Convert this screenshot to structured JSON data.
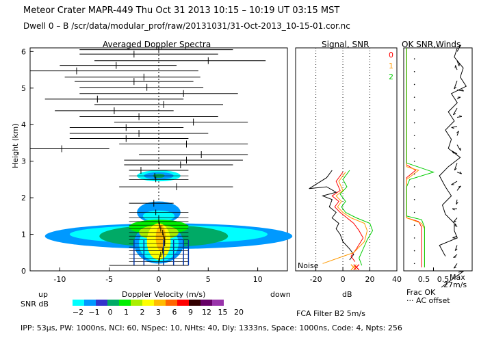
{
  "header": {
    "title_line": "Meteor Crater   MAPR-449   Thu Oct 31 2013 10:15 – 10:19 UT 03:15 MST",
    "dwell_line": "Dwell   0  –   B    /scr/data/modular_prof/raw/20131031/31-Oct-2013_10-15-01.cor.nc"
  },
  "colors": {
    "ok0": "#ff0000",
    "ok1": "#ff9900",
    "ok2": "#00cc00",
    "snr_scale": [
      "#00ffff",
      "#0099ff",
      "#3333cc",
      "#00aa66",
      "#00ee00",
      "#aaee00",
      "#ffff00",
      "#ffbb00",
      "#ff6600",
      "#ff0000",
      "#330000",
      "#660066",
      "#9933aa"
    ]
  },
  "chart_data": [
    {
      "type": "spectra",
      "title": "Averaged Doppler Spectra",
      "xlabel": "Doppler Velocity (m/s)",
      "ylabel": "Height (km)",
      "xlim": [
        -13,
        13
      ],
      "ylim": [
        0,
        6.1
      ],
      "xticks": [
        -10,
        -5,
        0,
        5,
        10
      ],
      "yticks": [
        0,
        1,
        2,
        3,
        4,
        5,
        6
      ],
      "direction_left": "up",
      "direction_right": "down",
      "snr_label": "SNR dB",
      "snr_ticks": [
        "−2",
        "−1",
        "0",
        "1",
        "2",
        "3",
        "6",
        "9",
        "12",
        "15",
        "20"
      ],
      "noisy_bars": [
        {
          "h": 6.05,
          "v": 0.0,
          "lo": -8.0,
          "hi": 7.5
        },
        {
          "h": 5.93,
          "v": -2.5,
          "lo": -8.0,
          "hi": 6.0
        },
        {
          "h": 5.75,
          "v": 5.0,
          "lo": -6.5,
          "hi": 10.8
        },
        {
          "h": 5.62,
          "v": -4.3,
          "lo": -10.0,
          "hi": 1.8
        },
        {
          "h": 5.47,
          "v": -8.3,
          "lo": -13.0,
          "hi": 4.0
        },
        {
          "h": 5.3,
          "v": -1.5,
          "lo": -9.5,
          "hi": 4.2
        },
        {
          "h": 5.18,
          "v": -2.5,
          "lo": -8.5,
          "hi": 3.5
        },
        {
          "h": 5.02,
          "v": -1.2,
          "lo": -8.0,
          "hi": 4.5
        },
        {
          "h": 4.85,
          "v": 2.5,
          "lo": -8.0,
          "hi": 8.0
        },
        {
          "h": 4.7,
          "v": -6.2,
          "lo": -11.5,
          "hi": 2.5
        },
        {
          "h": 4.55,
          "v": 0.5,
          "lo": -6.5,
          "hi": 6.5
        },
        {
          "h": 4.38,
          "v": -4.5,
          "lo": -10.5,
          "hi": 1.5
        },
        {
          "h": 4.22,
          "v": -2.0,
          "lo": -8.0,
          "hi": 6.0
        },
        {
          "h": 4.07,
          "v": 3.5,
          "lo": -4.5,
          "hi": 9.0
        },
        {
          "h": 3.92,
          "v": -3.3,
          "lo": -9.0,
          "hi": 2.5
        },
        {
          "h": 3.76,
          "v": -2.0,
          "lo": -9.0,
          "hi": 5.0
        },
        {
          "h": 3.62,
          "v": -3.3,
          "lo": -9.0,
          "hi": 3.0
        },
        {
          "h": 3.47,
          "v": 2.8,
          "lo": -4.0,
          "hi": 9.0
        },
        {
          "h": 3.34,
          "v": -9.8,
          "lo": -13.0,
          "hi": -5.0
        },
        {
          "h": 3.18,
          "v": 4.3,
          "lo": -2.0,
          "hi": 9.0
        },
        {
          "h": 3.03,
          "v": 2.8,
          "lo": -3.5,
          "hi": 8.5
        },
        {
          "h": 2.9,
          "v": 2.2,
          "lo": -3.5,
          "hi": 7.5
        },
        {
          "h": 2.75,
          "v": -1.8,
          "lo": -3.0,
          "hi": 3.0
        },
        {
          "h": 2.3,
          "v": 1.8,
          "lo": -4.0,
          "hi": 7.5
        },
        {
          "h": 1.85,
          "v": -0.5,
          "lo": -3.0,
          "hi": 1.5
        }
      ],
      "signal_ticks": [
        {
          "h": 1.6,
          "v": -0.3
        },
        {
          "h": 1.45,
          "v": 0.0
        },
        {
          "h": 1.35,
          "v": 0.0
        },
        {
          "h": 1.25,
          "v": 0.1
        },
        {
          "h": 1.15,
          "v": 0.2
        },
        {
          "h": 1.05,
          "v": 0.4
        },
        {
          "h": 0.95,
          "v": 0.5
        },
        {
          "h": 0.85,
          "v": 0.6
        },
        {
          "h": 0.75,
          "v": 0.6
        },
        {
          "h": 0.65,
          "v": 0.5
        },
        {
          "h": 0.55,
          "v": 0.4
        },
        {
          "h": 0.45,
          "v": 0.2
        },
        {
          "h": 0.35,
          "v": 0.1
        },
        {
          "h": 0.25,
          "v": 0.0
        },
        {
          "h": 2.6,
          "v": -0.4
        },
        {
          "h": 2.5,
          "v": -0.3
        }
      ],
      "verticals": [
        -2.5,
        -1.5,
        0.5,
        1.5,
        2.5,
        3.0
      ]
    },
    {
      "type": "line",
      "title": "Signal, SNR",
      "xlabel": "dB",
      "noise_label": "Noise",
      "xlim": [
        -35,
        40
      ],
      "xticks": [
        -20,
        0,
        20,
        40
      ],
      "ok_labels": [
        "0",
        "1",
        "2"
      ],
      "series": [
        {
          "name": "signal",
          "color": "#000000",
          "points": [
            [
              -8,
              2.75
            ],
            [
              -12,
              2.55
            ],
            [
              -25,
              2.25
            ],
            [
              -12,
              2.3
            ],
            [
              -5,
              2.15
            ],
            [
              -15,
              2.05
            ],
            [
              -8,
              1.95
            ],
            [
              -10,
              1.75
            ],
            [
              -5,
              1.6
            ],
            [
              -8,
              1.45
            ],
            [
              -3,
              1.3
            ],
            [
              -5,
              1.15
            ],
            [
              -2,
              1.0
            ],
            [
              0,
              0.8
            ],
            [
              5,
              0.6
            ],
            [
              8,
              0.45
            ],
            [
              5,
              0.3
            ]
          ]
        },
        {
          "name": "snr_ok0",
          "color": "#ff0000",
          "points": [
            [
              0,
              2.7
            ],
            [
              -5,
              2.45
            ],
            [
              -2,
              2.2
            ],
            [
              -8,
              2.05
            ],
            [
              -3,
              1.9
            ],
            [
              -6,
              1.75
            ],
            [
              -2,
              1.6
            ],
            [
              3,
              1.45
            ],
            [
              8,
              1.3
            ],
            [
              12,
              1.1
            ],
            [
              15,
              0.9
            ],
            [
              10,
              0.6
            ],
            [
              6,
              0.4
            ],
            [
              9,
              0.25
            ]
          ]
        },
        {
          "name": "snr_ok1",
          "color": "#ff9900",
          "points": [
            [
              2,
              2.7
            ],
            [
              -3,
              2.45
            ],
            [
              0,
              2.2
            ],
            [
              -5,
              2.05
            ],
            [
              -1,
              1.9
            ],
            [
              -4,
              1.75
            ],
            [
              0,
              1.6
            ],
            [
              6,
              1.45
            ],
            [
              16,
              1.3
            ],
            [
              18,
              1.1
            ],
            [
              16,
              0.8
            ],
            [
              8,
              0.5
            ],
            [
              -15,
              0.2
            ]
          ]
        },
        {
          "name": "snr_ok2",
          "color": "#00cc00",
          "points": [
            [
              5,
              2.75
            ],
            [
              0,
              2.5
            ],
            [
              3,
              2.3
            ],
            [
              -2,
              2.1
            ],
            [
              2,
              1.9
            ],
            [
              -1,
              1.75
            ],
            [
              2,
              1.6
            ],
            [
              10,
              1.45
            ],
            [
              20,
              1.3
            ],
            [
              22,
              1.1
            ],
            [
              18,
              0.85
            ],
            [
              15,
              0.6
            ],
            [
              12,
              0.35
            ],
            [
              14,
              0.15
            ]
          ]
        }
      ],
      "noise_markers": [
        {
          "dB": 8,
          "color": "#ff9900"
        },
        {
          "dB": 10,
          "color": "#ff0000"
        }
      ]
    },
    {
      "type": "line",
      "title": "OK SNR,Winds",
      "xlim": [
        0,
        1.15
      ],
      "xticks": [
        0.5
      ],
      "xtick_labels": [
        "0.5",
        "0.5"
      ],
      "frac_label": "Frac OK",
      "offset_label": "··· AC offset",
      "wind_label_max": "Max",
      "wind_label_speed": "27m/s",
      "series": [
        {
          "name": "frac_ok",
          "color": "#000000",
          "points": [
            [
              0.9,
              6.1
            ],
            [
              0.85,
              5.85
            ],
            [
              1.0,
              5.55
            ],
            [
              0.95,
              5.3
            ],
            [
              1.05,
              5.05
            ],
            [
              0.8,
              4.85
            ],
            [
              0.9,
              4.6
            ],
            [
              0.75,
              4.35
            ],
            [
              0.85,
              4.1
            ],
            [
              0.7,
              3.85
            ],
            [
              0.8,
              3.6
            ],
            [
              0.75,
              3.35
            ],
            [
              0.95,
              3.1
            ],
            [
              0.75,
              2.85
            ],
            [
              0.6,
              2.6
            ],
            [
              0.7,
              2.3
            ],
            [
              0.8,
              2.05
            ],
            [
              0.65,
              1.8
            ],
            [
              0.7,
              1.55
            ],
            [
              0.85,
              1.3
            ],
            [
              0.85,
              1.1
            ],
            [
              0.9,
              0.9
            ],
            [
              0.6,
              0.7
            ],
            [
              0.7,
              0.4
            ]
          ]
        },
        {
          "name": "ok0",
          "color": "#ff0000",
          "points": [
            [
              0.05,
              6.1
            ],
            [
              0.05,
              2.9
            ],
            [
              0.2,
              2.75
            ],
            [
              0.05,
              2.55
            ],
            [
              0.05,
              1.45
            ],
            [
              0.25,
              1.35
            ],
            [
              0.3,
              1.2
            ],
            [
              0.3,
              0.1
            ]
          ]
        },
        {
          "name": "ok1",
          "color": "#ff9900",
          "points": [
            [
              0.05,
              6.1
            ],
            [
              0.05,
              2.85
            ],
            [
              0.25,
              2.75
            ],
            [
              0.05,
              2.5
            ],
            [
              0.05,
              1.45
            ],
            [
              0.3,
              1.3
            ],
            [
              0.35,
              1.15
            ],
            [
              0.35,
              0.1
            ]
          ]
        },
        {
          "name": "ok2",
          "color": "#00cc00",
          "points": [
            [
              0.05,
              6.1
            ],
            [
              0.05,
              2.95
            ],
            [
              0.5,
              2.7
            ],
            [
              0.1,
              2.5
            ],
            [
              0.05,
              2.3
            ],
            [
              0.05,
              1.5
            ],
            [
              0.3,
              1.4
            ],
            [
              0.35,
              1.2
            ],
            [
              0.35,
              0.1
            ]
          ]
        }
      ],
      "wind_barbs": [
        {
          "h": 6.0,
          "dir": 30,
          "len": 0.8
        },
        {
          "h": 5.75,
          "dir": 160,
          "len": 0.6
        },
        {
          "h": 5.5,
          "dir": 340,
          "len": 0.5
        },
        {
          "h": 5.2,
          "dir": 200,
          "len": 0.9
        },
        {
          "h": 4.95,
          "dir": 100,
          "len": 0.7
        },
        {
          "h": 4.7,
          "dir": 60,
          "len": 0.4
        },
        {
          "h": 4.45,
          "dir": 210,
          "len": 0.8
        },
        {
          "h": 4.2,
          "dir": 80,
          "len": 0.5
        },
        {
          "h": 3.95,
          "dir": 260,
          "len": 0.6
        },
        {
          "h": 3.7,
          "dir": 20,
          "len": 0.5
        },
        {
          "h": 3.45,
          "dir": 150,
          "len": 0.7
        },
        {
          "h": 3.2,
          "dir": 300,
          "len": 0.6
        },
        {
          "h": 2.95,
          "dir": 200,
          "len": 0.8
        },
        {
          "h": 2.7,
          "dir": 110,
          "len": 0.5
        },
        {
          "h": 2.45,
          "dir": 240,
          "len": 0.7
        },
        {
          "h": 2.2,
          "dir": 40,
          "len": 0.6
        },
        {
          "h": 1.95,
          "dir": 190,
          "len": 0.5
        },
        {
          "h": 1.7,
          "dir": 270,
          "len": 0.5
        },
        {
          "h": 1.45,
          "dir": 220,
          "len": 0.6
        },
        {
          "h": 1.2,
          "dir": 330,
          "len": 0.4
        },
        {
          "h": 0.95,
          "dir": 250,
          "len": 0.5
        },
        {
          "h": 0.7,
          "dir": 200,
          "len": 0.6
        },
        {
          "h": 0.45,
          "dir": 230,
          "len": 0.5
        },
        {
          "h": 0.2,
          "dir": 215,
          "len": 0.6
        }
      ]
    }
  ],
  "footer": {
    "filter": "FCA Filter B2   5m/s",
    "params": "IPP:  53µs,   PW: 1000ns,   NCI:  60,   NSpec: 10,  NHts: 40,   Dly: 1333ns,   Space: 1000ns,   Code: 4,   Npts: 256"
  }
}
